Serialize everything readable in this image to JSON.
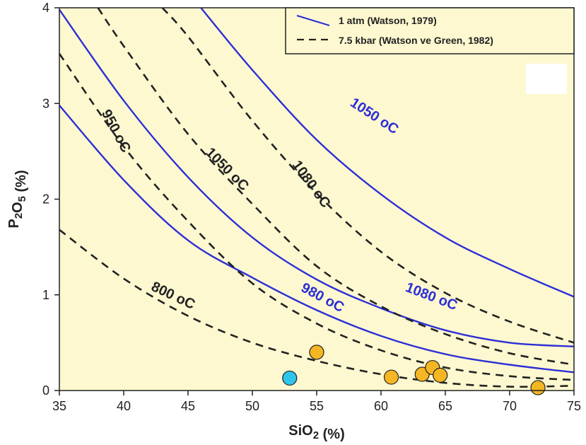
{
  "chart_data": {
    "type": "line",
    "xlabel": "SiO2 (%)",
    "ylabel": "P2O5 (%)",
    "xlim": [
      35,
      75
    ],
    "ylim": [
      0,
      4
    ],
    "x_ticks": [
      35,
      40,
      45,
      50,
      55,
      60,
      65,
      70,
      75
    ],
    "y_ticks": [
      0,
      1,
      2,
      3,
      4
    ],
    "grid": false,
    "background_color": "#fdf8d0",
    "legend_position": "top-right",
    "legend": [
      {
        "label": "1 atm (Watson, 1979)",
        "style": "solid",
        "color": "#2d2fd6"
      },
      {
        "label": "7.5 kbar (Watson ve Green, 1982)",
        "style": "dashed",
        "color": "#222222"
      }
    ],
    "series": [
      {
        "name": "950 °C",
        "style": "solid",
        "color": "#2d2fd6",
        "group": "1 atm (Watson, 1979)",
        "x": [
          35,
          40,
          45,
          50,
          55,
          60,
          65,
          70,
          75
        ],
        "y": [
          2.98,
          2.2,
          1.57,
          1.18,
          0.84,
          0.57,
          0.38,
          0.27,
          0.19
        ]
      },
      {
        "name": "980 °C",
        "style": "solid",
        "color": "#2d2fd6",
        "group": "1 atm (Watson, 1979)",
        "x": [
          35,
          40,
          45,
          50,
          55,
          60,
          65,
          70,
          75
        ],
        "y": [
          3.98,
          3.03,
          2.23,
          1.6,
          1.16,
          0.86,
          0.63,
          0.5,
          0.46
        ]
      },
      {
        "name": "1050 °C",
        "style": "solid",
        "color": "#2d2fd6",
        "group": "1 atm (Watson, 1979)",
        "x": [
          46,
          50,
          55,
          60,
          65,
          70,
          75
        ],
        "y": [
          4.0,
          3.35,
          2.62,
          2.05,
          1.6,
          1.27,
          0.98
        ]
      },
      {
        "name": "800 °C",
        "style": "dashed",
        "color": "#222222",
        "group": "7.5 kbar (Watson ve Green, 1982)",
        "x": [
          35,
          40,
          45,
          50,
          55,
          60,
          65,
          70,
          75
        ],
        "y": [
          1.68,
          1.17,
          0.78,
          0.5,
          0.31,
          0.17,
          0.08,
          0.04,
          0.05
        ]
      },
      {
        "name": "950 °C",
        "style": "dashed",
        "color": "#222222",
        "group": "7.5 kbar (Watson ve Green, 1982)",
        "x": [
          35,
          40,
          45,
          50,
          55,
          60,
          65,
          70,
          75
        ],
        "y": [
          3.52,
          2.55,
          1.77,
          1.12,
          0.7,
          0.42,
          0.24,
          0.15,
          0.11
        ]
      },
      {
        "name": "1050 °C",
        "style": "dashed",
        "color": "#222222",
        "group": "7.5 kbar (Watson ve Green, 1982)",
        "x": [
          38,
          40,
          45,
          50,
          55,
          60,
          65,
          70,
          75
        ],
        "y": [
          4.0,
          3.6,
          2.68,
          1.95,
          1.3,
          0.88,
          0.59,
          0.39,
          0.27
        ]
      },
      {
        "name": "1080 °C",
        "style": "dashed",
        "color": "#222222",
        "group": "7.5 kbar (Watson ve Green, 1982)",
        "x": [
          43,
          45,
          50,
          55,
          60,
          65,
          70,
          75
        ],
        "y": [
          4.0,
          3.7,
          2.82,
          2.06,
          1.45,
          1.02,
          0.72,
          0.5
        ]
      }
    ],
    "curve_labels": [
      {
        "text": "1050 oC",
        "color": "#2d2fd6",
        "x": 59.3,
        "y": 2.83,
        "angle": 33
      },
      {
        "text": "980 oC",
        "color": "#2d2fd6",
        "x": 55.3,
        "y": 0.93,
        "angle": 28
      },
      {
        "text": "1080 oC",
        "color": "#2d2fd6",
        "x": 63.8,
        "y": 0.94,
        "angle": 21
      },
      {
        "text": "950 oC",
        "color": "#222222",
        "x": 39.1,
        "y": 2.69,
        "angle": 62
      },
      {
        "text": "1050 oC",
        "color": "#222222",
        "x": 47.8,
        "y": 2.28,
        "angle": 45
      },
      {
        "text": "1080 oC",
        "color": "#222222",
        "x": 54.3,
        "y": 2.13,
        "angle": 54
      },
      {
        "text": "800 oC",
        "color": "#222222",
        "x": 43.7,
        "y": 0.95,
        "angle": 25
      }
    ],
    "points": [
      {
        "x": 52.9,
        "y": 0.13,
        "color": "#2fc4ea"
      },
      {
        "x": 55.0,
        "y": 0.4,
        "color": "#f5b623"
      },
      {
        "x": 60.8,
        "y": 0.14,
        "color": "#f5b623"
      },
      {
        "x": 63.2,
        "y": 0.17,
        "color": "#f5b623"
      },
      {
        "x": 64.0,
        "y": 0.24,
        "color": "#f5b623"
      },
      {
        "x": 64.6,
        "y": 0.16,
        "color": "#f5b623"
      },
      {
        "x": 72.2,
        "y": 0.03,
        "color": "#f5b623"
      }
    ]
  }
}
